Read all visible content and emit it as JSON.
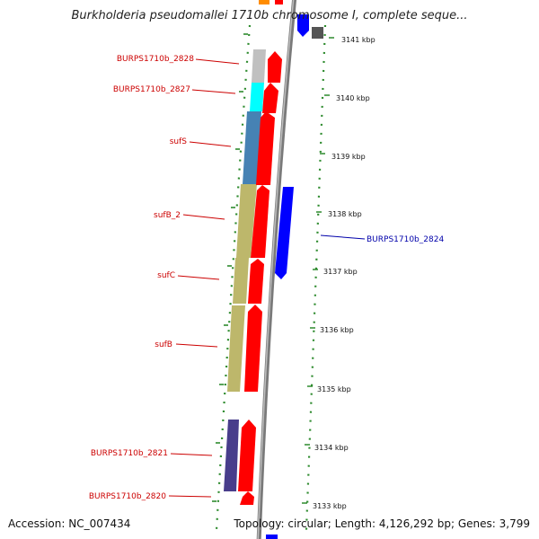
{
  "title": "Burkholderia pseudomallei 1710b chromosome I, complete seque...",
  "footer": {
    "accession": "Accession: NC_007434",
    "topology": "Topology: circular; Length: 4,126,292 bp; Genes: 3,799"
  },
  "colors": {
    "forward_cds": "#ff0000",
    "reverse_cds": "#0000ff",
    "forward_label": "#cc0000",
    "reverse_label": "#0000aa",
    "tick": "#2e8b2e",
    "backbone": "#888888",
    "sufS_track": "#4682b4",
    "sufB_sufC_track": "#bdb76b",
    "gene_2827_track": "#00ffff",
    "gene_2828_track": "#c0c0c0",
    "gene_2821_track": "#483d8b"
  },
  "scale_labels": [
    {
      "kbp": 3141,
      "label": "3141 kbp"
    },
    {
      "kbp": 3140,
      "label": "3140 kbp"
    },
    {
      "kbp": 3139,
      "label": "3139 kbp"
    },
    {
      "kbp": 3138,
      "label": "3138 kbp"
    },
    {
      "kbp": 3137,
      "label": "3137 kbp"
    },
    {
      "kbp": 3136,
      "label": "3136 kbp"
    },
    {
      "kbp": 3135,
      "label": "3135 kbp"
    },
    {
      "kbp": 3134,
      "label": "3134 kbp"
    },
    {
      "kbp": 3133,
      "label": "3133 kbp"
    }
  ],
  "genes": [
    {
      "name": "BURPS1710b_2828",
      "strand": "forward"
    },
    {
      "name": "BURPS1710b_2827",
      "strand": "forward"
    },
    {
      "name": "sufS",
      "strand": "forward"
    },
    {
      "name": "sufB_2",
      "strand": "forward"
    },
    {
      "name": "sufC",
      "strand": "forward"
    },
    {
      "name": "sufB",
      "strand": "forward"
    },
    {
      "name": "BURPS1710b_2821",
      "strand": "forward"
    },
    {
      "name": "BURPS1710b_2820",
      "strand": "forward"
    },
    {
      "name": "BURPS1710b_2824",
      "strand": "reverse"
    }
  ]
}
